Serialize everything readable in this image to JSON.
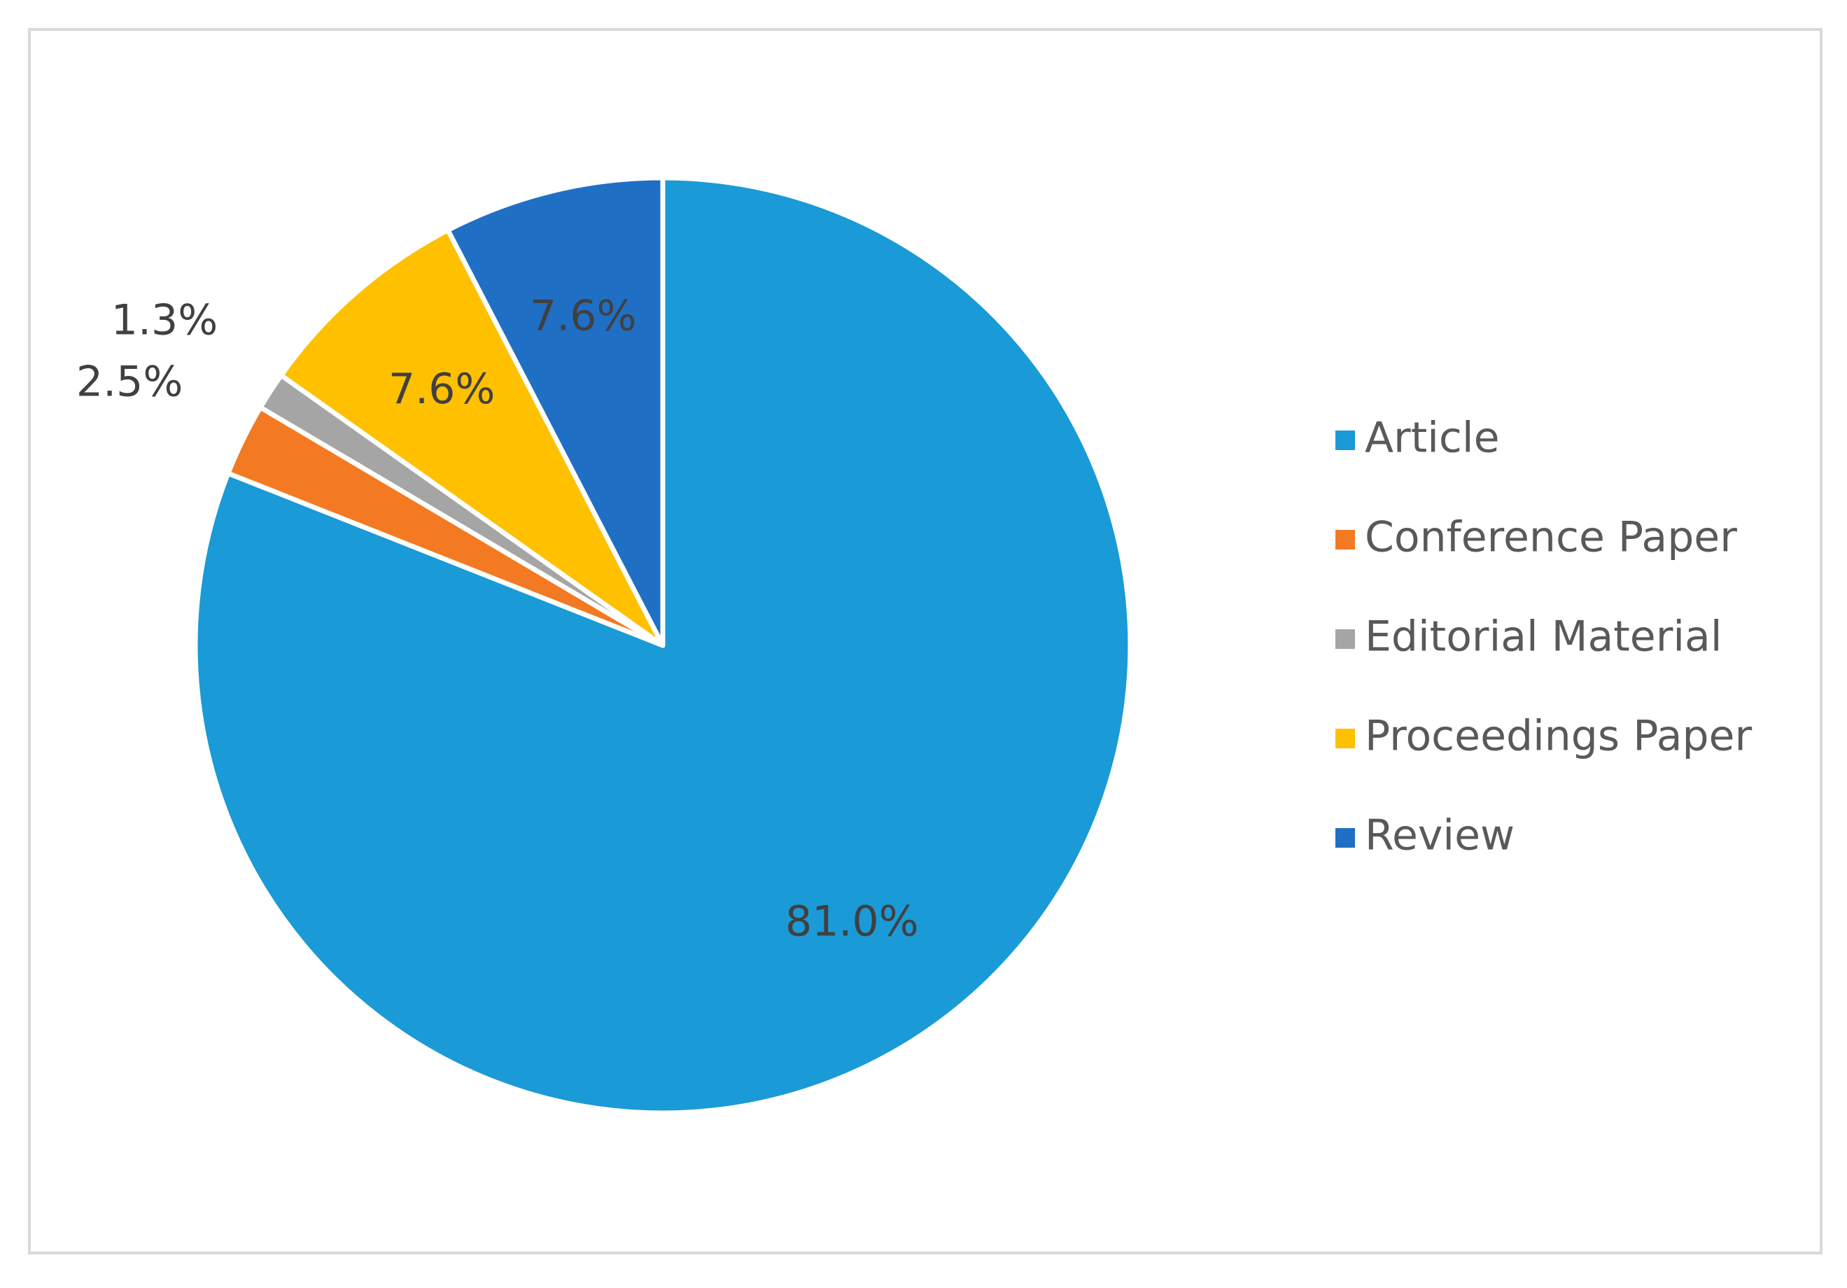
{
  "chart_data": {
    "type": "pie",
    "categories": [
      "Article",
      "Conference Paper",
      "Editorial Material",
      "Proceedings Paper",
      "Review"
    ],
    "values": [
      81.0,
      2.5,
      1.3,
      7.6,
      7.6
    ],
    "value_labels": [
      "81.0%",
      "2.5%",
      "1.3%",
      "7.6%",
      "7.6%"
    ],
    "colors": [
      "#1a9ad6",
      "#f37a22",
      "#a5a5a5",
      "#ffc000",
      "#1f6fc5"
    ],
    "legend": "right"
  }
}
